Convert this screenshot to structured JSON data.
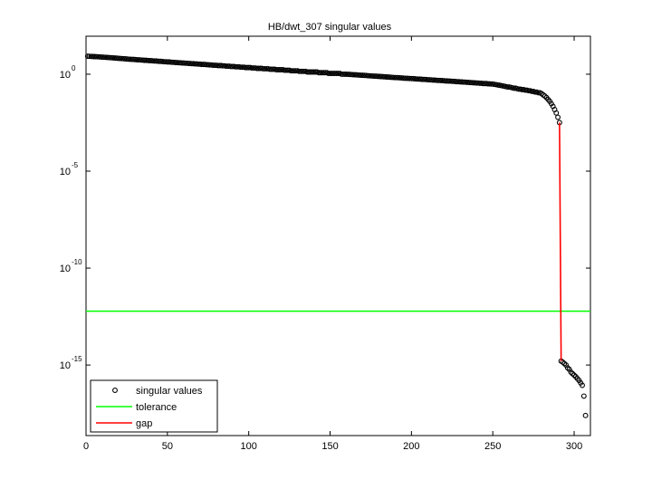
{
  "chart_data": {
    "type": "scatter",
    "title": "HB/dwt_307 singular values",
    "log_y": true,
    "xlim": [
      0,
      310
    ],
    "ylim": [
      2.3e-19,
      91
    ],
    "xticks": [
      0,
      50,
      100,
      150,
      200,
      250,
      300
    ],
    "yticks": [
      {
        "value": 1,
        "label": "10",
        "exponent": "0"
      },
      {
        "value": 1e-05,
        "label": "10",
        "exponent": "-5"
      },
      {
        "value": 1e-10,
        "label": "10",
        "exponent": "-10"
      },
      {
        "value": 1e-15,
        "label": "10",
        "exponent": "-15"
      }
    ],
    "legend": "lower left",
    "series": [
      {
        "name": "singular values",
        "type": "scatter",
        "color": "#000000",
        "x": [
          1,
          2,
          3,
          4,
          5,
          6,
          7,
          8,
          9,
          10,
          11,
          12,
          13,
          14,
          15,
          16,
          17,
          18,
          19,
          20,
          21,
          22,
          23,
          24,
          25,
          26,
          27,
          28,
          29,
          30,
          31,
          32,
          33,
          34,
          35,
          36,
          37,
          38,
          39,
          40,
          41,
          42,
          43,
          44,
          45,
          46,
          47,
          48,
          49,
          50,
          51,
          52,
          53,
          54,
          55,
          56,
          57,
          58,
          59,
          60,
          61,
          62,
          63,
          64,
          65,
          66,
          67,
          68,
          69,
          70,
          71,
          72,
          73,
          74,
          75,
          76,
          77,
          78,
          79,
          80,
          81,
          82,
          83,
          84,
          85,
          86,
          87,
          88,
          89,
          90,
          91,
          92,
          93,
          94,
          95,
          96,
          97,
          98,
          99,
          100,
          101,
          102,
          103,
          104,
          105,
          106,
          107,
          108,
          109,
          110,
          111,
          112,
          113,
          114,
          115,
          116,
          117,
          118,
          119,
          120,
          121,
          122,
          123,
          124,
          125,
          126,
          127,
          128,
          129,
          130,
          131,
          132,
          133,
          134,
          135,
          136,
          137,
          138,
          139,
          140,
          141,
          142,
          143,
          144,
          145,
          146,
          147,
          148,
          149,
          150,
          151,
          152,
          153,
          154,
          155,
          156,
          157,
          158,
          159,
          160,
          161,
          162,
          163,
          164,
          165,
          166,
          167,
          168,
          169,
          170,
          171,
          172,
          173,
          174,
          175,
          176,
          177,
          178,
          179,
          180,
          181,
          182,
          183,
          184,
          185,
          186,
          187,
          188,
          189,
          190,
          191,
          192,
          193,
          194,
          195,
          196,
          197,
          198,
          199,
          200,
          201,
          202,
          203,
          204,
          205,
          206,
          207,
          208,
          209,
          210,
          211,
          212,
          213,
          214,
          215,
          216,
          217,
          218,
          219,
          220,
          221,
          222,
          223,
          224,
          225,
          226,
          227,
          228,
          229,
          230,
          231,
          232,
          233,
          234,
          235,
          236,
          237,
          238,
          239,
          240,
          241,
          242,
          243,
          244,
          245,
          246,
          247,
          248,
          249,
          250,
          251,
          252,
          253,
          254,
          255,
          256,
          257,
          258,
          259,
          260,
          261,
          262,
          263,
          264,
          265,
          266,
          267,
          268,
          269,
          270,
          271,
          272,
          273,
          274,
          275,
          276,
          277,
          278,
          279,
          280,
          281,
          282,
          283,
          284,
          285,
          286,
          287,
          288,
          289,
          290,
          291,
          292,
          293,
          294,
          295,
          296,
          297,
          298,
          299,
          300,
          301,
          302,
          303,
          304,
          305,
          306,
          307
        ],
        "values": [
          8.5,
          8.4,
          8.3,
          8.2,
          8.1,
          8.0,
          7.9,
          7.8,
          7.7,
          7.6,
          7.5,
          7.4,
          7.3,
          7.2,
          7.1,
          7.0,
          6.9,
          6.8,
          6.7,
          6.6,
          6.5,
          6.4,
          6.3,
          6.2,
          6.1,
          6.0,
          5.9,
          5.8,
          5.8,
          5.7,
          5.6,
          5.5,
          5.5,
          5.4,
          5.3,
          5.2,
          5.2,
          5.1,
          5.0,
          5.0,
          4.9,
          4.8,
          4.8,
          4.7,
          4.6,
          4.6,
          4.5,
          4.4,
          4.4,
          4.3,
          4.3,
          4.2,
          4.1,
          4.1,
          4.0,
          4.0,
          3.9,
          3.9,
          3.8,
          3.8,
          3.7,
          3.7,
          3.6,
          3.6,
          3.5,
          3.5,
          3.4,
          3.4,
          3.3,
          3.3,
          3.2,
          3.2,
          3.2,
          3.1,
          3.1,
          3.0,
          3.0,
          2.9,
          2.9,
          2.9,
          2.8,
          2.8,
          2.8,
          2.7,
          2.7,
          2.6,
          2.6,
          2.6,
          2.5,
          2.5,
          2.5,
          2.4,
          2.4,
          2.4,
          2.3,
          2.3,
          2.3,
          2.2,
          2.2,
          2.2,
          2.2,
          2.1,
          2.1,
          2.1,
          2.0,
          2.0,
          2.0,
          2.0,
          1.9,
          1.9,
          1.9,
          1.9,
          1.8,
          1.8,
          1.8,
          1.8,
          1.7,
          1.7,
          1.7,
          1.7,
          1.7,
          1.6,
          1.6,
          1.6,
          1.6,
          1.5,
          1.5,
          1.5,
          1.5,
          1.5,
          1.4,
          1.4,
          1.4,
          1.4,
          1.4,
          1.3,
          1.3,
          1.3,
          1.3,
          1.3,
          1.3,
          1.3,
          1.2,
          1.2,
          1.2,
          1.2,
          1.2,
          1.2,
          1.1,
          1.1,
          1.1,
          1.1,
          1.1,
          1.1,
          1.1,
          1.1,
          1.0,
          1.0,
          1.0,
          1.0,
          0.99,
          0.98,
          0.96,
          0.95,
          0.94,
          0.93,
          0.91,
          0.9,
          0.89,
          0.88,
          0.87,
          0.86,
          0.84,
          0.83,
          0.82,
          0.81,
          0.8,
          0.79,
          0.78,
          0.77,
          0.76,
          0.75,
          0.74,
          0.73,
          0.72,
          0.71,
          0.7,
          0.69,
          0.68,
          0.67,
          0.67,
          0.66,
          0.65,
          0.64,
          0.63,
          0.62,
          0.62,
          0.61,
          0.6,
          0.59,
          0.59,
          0.58,
          0.57,
          0.56,
          0.56,
          0.55,
          0.54,
          0.54,
          0.53,
          0.52,
          0.52,
          0.51,
          0.5,
          0.5,
          0.49,
          0.48,
          0.48,
          0.47,
          0.47,
          0.46,
          0.45,
          0.45,
          0.44,
          0.44,
          0.43,
          0.43,
          0.42,
          0.41,
          0.41,
          0.4,
          0.4,
          0.39,
          0.39,
          0.38,
          0.38,
          0.37,
          0.37,
          0.36,
          0.36,
          0.35,
          0.35,
          0.34,
          0.34,
          0.33,
          0.33,
          0.33,
          0.32,
          0.32,
          0.31,
          0.31,
          0.3,
          0.29,
          0.28,
          0.27,
          0.26,
          0.25,
          0.24,
          0.23,
          0.22,
          0.22,
          0.21,
          0.2,
          0.19,
          0.19,
          0.18,
          0.17,
          0.17,
          0.16,
          0.16,
          0.15,
          0.15,
          0.14,
          0.14,
          0.13,
          0.13,
          0.12,
          0.12,
          0.11,
          0.11,
          0.1,
          0.085,
          0.075,
          0.063,
          0.05,
          0.04,
          0.03,
          0.022,
          0.015,
          0.01,
          0.006,
          0.0032,
          1.6e-15,
          1.4e-15,
          1.2e-15,
          1e-15,
          7.2e-16,
          6e-16,
          4.3e-16,
          3.6e-16,
          3e-16,
          2.5e-16,
          2e-16,
          1.6e-16,
          1.2e-16,
          9e-17,
          2.5e-17,
          2.5e-18
        ]
      },
      {
        "name": "tolerance",
        "type": "hline",
        "color": "#00ff00",
        "values": [
          6e-13
        ]
      },
      {
        "name": "gap",
        "type": "line",
        "color": "#ff0000",
        "x": [
          291,
          292
        ],
        "values": [
          0.0032,
          1.6e-15
        ]
      }
    ]
  }
}
